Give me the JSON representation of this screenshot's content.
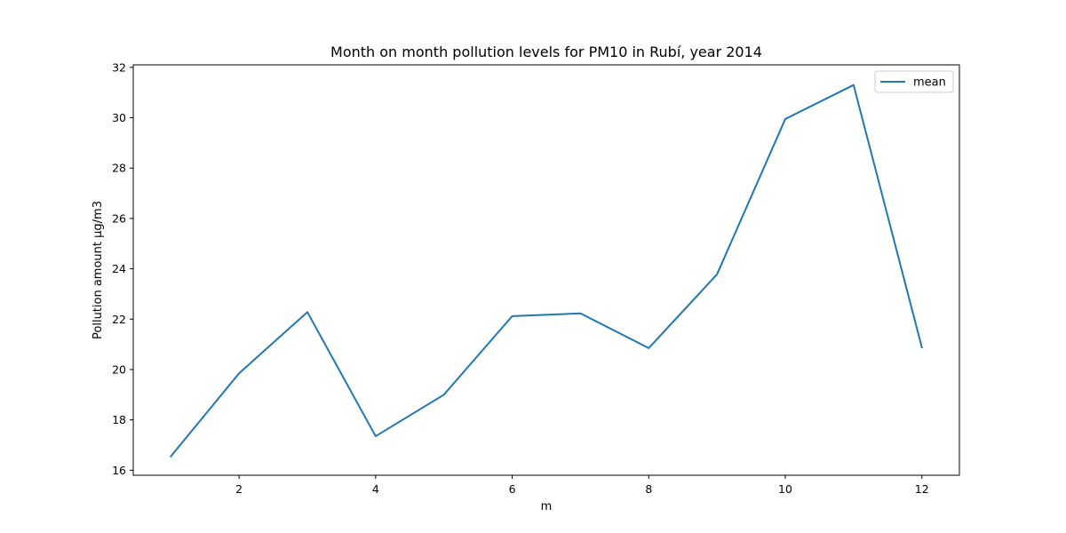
{
  "chart_data": {
    "type": "line",
    "title": "Month on month pollution levels for PM10 in Rubí, year 2014",
    "xlabel": "m",
    "ylabel": "Pollution amount µg/m3",
    "xlim": [
      0.45,
      12.55
    ],
    "ylim": [
      15.8,
      32.1
    ],
    "xticks": [
      2,
      4,
      6,
      8,
      10,
      12
    ],
    "yticks": [
      16,
      18,
      20,
      22,
      24,
      26,
      28,
      30,
      32
    ],
    "grid": false,
    "legend_position": "top-right",
    "series": [
      {
        "name": "mean",
        "color": "#1f77b4",
        "x": [
          1,
          2,
          3,
          4,
          5,
          6,
          7,
          8,
          9,
          10,
          11,
          12
        ],
        "y": [
          16.55,
          19.85,
          22.28,
          17.35,
          19.0,
          22.12,
          22.23,
          20.85,
          23.78,
          29.95,
          31.3,
          20.88
        ]
      }
    ]
  }
}
